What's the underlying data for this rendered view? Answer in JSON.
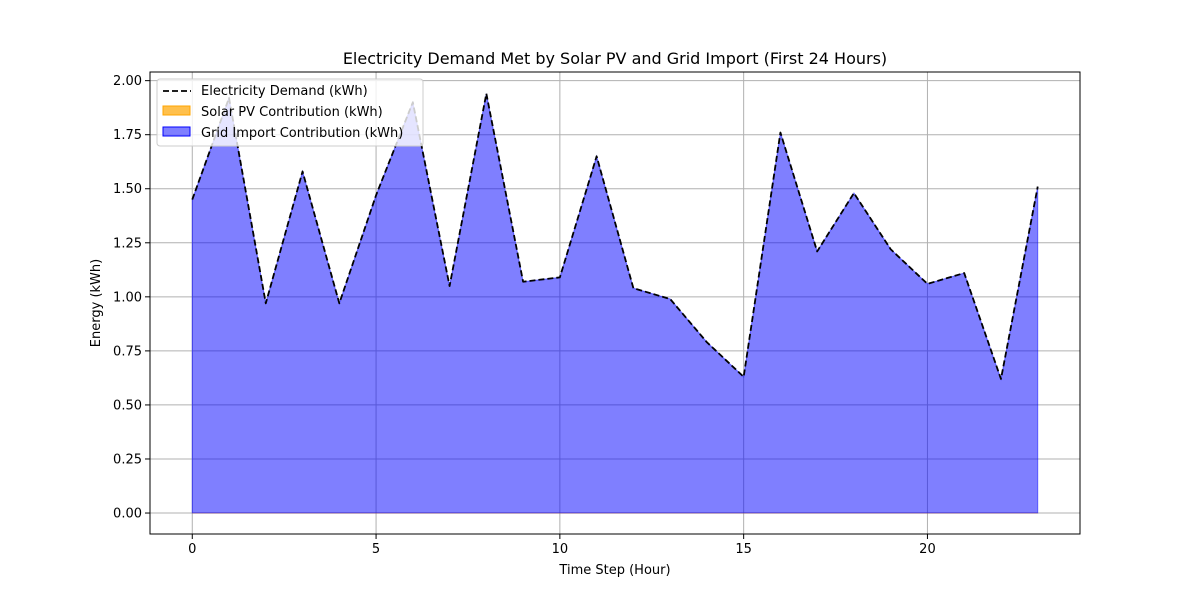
{
  "chart_data": {
    "type": "area",
    "title": "Electricity Demand Met by Solar PV and Grid Import (First 24 Hours)",
    "xlabel": "Time Step (Hour)",
    "ylabel": "Energy (kWh)",
    "xlim": [
      -1.15,
      24.15
    ],
    "ylim": [
      -0.097,
      2.04
    ],
    "x_ticks": [
      0,
      5,
      10,
      15,
      20
    ],
    "y_ticks": [
      0.0,
      0.25,
      0.5,
      0.75,
      1.0,
      1.25,
      1.5,
      1.75,
      2.0
    ],
    "x_tick_labels": [
      "0",
      "5",
      "10",
      "15",
      "20"
    ],
    "y_tick_labels": [
      "0.00",
      "0.25",
      "0.50",
      "0.75",
      "1.00",
      "1.25",
      "1.50",
      "1.75",
      "2.00"
    ],
    "grid": true,
    "legend_position": "top-left",
    "x": [
      0,
      1,
      2,
      3,
      4,
      5,
      6,
      7,
      8,
      9,
      10,
      11,
      12,
      13,
      14,
      15,
      16,
      17,
      18,
      19,
      20,
      21,
      22,
      23
    ],
    "series": [
      {
        "name": "Electricity Demand (kWh)",
        "style": "dashed-line",
        "color": "#000000",
        "values": [
          1.45,
          1.92,
          0.97,
          1.58,
          0.97,
          1.47,
          1.9,
          1.05,
          1.94,
          1.07,
          1.09,
          1.65,
          1.04,
          0.99,
          0.79,
          0.63,
          1.76,
          1.21,
          1.48,
          1.22,
          1.06,
          1.11,
          0.62,
          1.51
        ]
      },
      {
        "name": "Solar PV Contribution (kWh)",
        "style": "stacked-area",
        "color": "#ffa500",
        "values": [
          0,
          0,
          0,
          0,
          0,
          0,
          0,
          0,
          0,
          0,
          0,
          0,
          0,
          0,
          0,
          0,
          0,
          0,
          0,
          0,
          0,
          0,
          0,
          0
        ]
      },
      {
        "name": "Grid Import Contribution (kWh)",
        "style": "stacked-area",
        "color": "#0000ff",
        "values": [
          1.45,
          1.92,
          0.97,
          1.58,
          0.97,
          1.47,
          1.9,
          1.05,
          1.94,
          1.07,
          1.09,
          1.65,
          1.04,
          0.99,
          0.79,
          0.63,
          1.76,
          1.21,
          1.48,
          1.22,
          1.06,
          1.11,
          0.62,
          1.51
        ]
      }
    ]
  }
}
